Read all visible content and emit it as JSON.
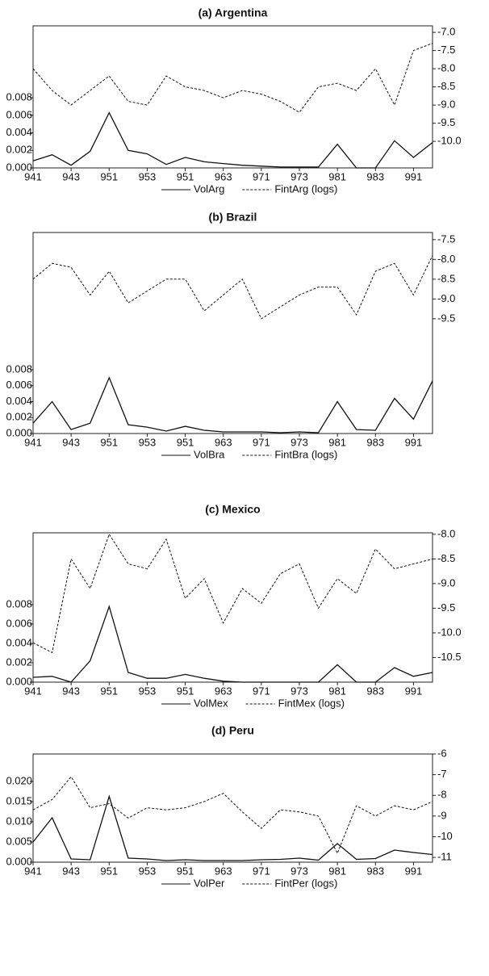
{
  "chart_data": [
    {
      "type": "line",
      "title": "(a) Argentina",
      "categories": [
        "941",
        null,
        "943",
        null,
        "951",
        null,
        "953",
        null,
        "951",
        null,
        "963",
        null,
        "971",
        null,
        "973",
        null,
        "981",
        null,
        "983",
        null,
        "991",
        null
      ],
      "series": [
        {
          "name": "VolArg",
          "color": "#111111",
          "style": "solid",
          "values": [
            0.0008,
            0.0015,
            0.0003,
            0.0019,
            0.0063,
            0.002,
            0.0016,
            0.0004,
            0.0012,
            0.0007,
            0.0005,
            0.0003,
            0.0002,
            0.0001,
            0.0001,
            0.0001,
            0.0027,
            0.0,
            0.0,
            0.0031,
            0.0012,
            0.0029
          ]
        },
        {
          "name": "FintArg (logs)",
          "color": "#111111",
          "style": "dashed",
          "axis": "y2",
          "values": [
            -8.0,
            -8.6,
            -9.0,
            -8.6,
            -8.2,
            -8.9,
            -9.0,
            -8.2,
            -8.5,
            -8.6,
            -8.8,
            -8.6,
            -8.7,
            -8.9,
            -9.2,
            -8.5,
            -8.4,
            -8.6,
            -8.0,
            -9.0,
            -7.5,
            -7.3
          ]
        }
      ],
      "ylim": [
        0,
        0.0162
      ],
      "yticks": [
        {
          "value": 0,
          "label": "0.000"
        },
        0.002,
        0.004,
        0.006,
        0.008
      ],
      "y2lim": [
        -10.73,
        -6.82
      ],
      "y2ticks": [
        {
          "value": -7,
          "label": "-7.0"
        },
        -7.5,
        {
          "value": -8,
          "label": "-8.0"
        },
        -8.5,
        {
          "value": -9,
          "label": "-9.0"
        },
        -9.5,
        {
          "value": -10,
          "label": "-10.0"
        }
      ],
      "grid": false,
      "legend": "bottom"
    },
    {
      "type": "line",
      "title": "(b) Brazil",
      "categories": [
        "941",
        null,
        "943",
        null,
        "951",
        null,
        "953",
        null,
        "951",
        null,
        "963",
        null,
        "971",
        null,
        "973",
        null,
        "981",
        null,
        "983",
        null,
        "991",
        null
      ],
      "series": [
        {
          "name": "VolBra",
          "color": "#111111",
          "style": "solid",
          "values": [
            0.0013,
            0.004,
            0.0005,
            0.0013,
            0.007,
            0.0011,
            0.0008,
            0.0003,
            0.0009,
            0.0004,
            0.0002,
            0.0002,
            0.0002,
            0.0001,
            0.0002,
            0.0001,
            0.004,
            0.0005,
            0.0004,
            0.0044,
            0.0018,
            0.0066
          ]
        },
        {
          "name": "FintBra (logs)",
          "color": "#111111",
          "style": "dashed",
          "axis": "y2",
          "values": [
            -8.5,
            -8.1,
            -8.2,
            -8.9,
            -8.3,
            -9.1,
            -8.8,
            -8.5,
            -8.5,
            -9.3,
            -8.9,
            -8.5,
            -9.5,
            -9.2,
            -8.9,
            -8.7,
            -8.7,
            -9.4,
            -8.3,
            -8.1,
            -8.9,
            -7.9
          ]
        }
      ],
      "ylim": [
        0,
        0.0252
      ],
      "yticks": [
        {
          "value": 0,
          "label": "0.000"
        },
        0.002,
        0.004,
        0.006,
        0.008
      ],
      "y2lim": [
        -12.4,
        -7.32
      ],
      "y2ticks": [
        -7.5,
        {
          "value": -8,
          "label": "-8.0"
        },
        -8.5,
        {
          "value": -9,
          "label": "-9.0"
        },
        -9.5
      ],
      "grid": false,
      "legend": "bottom"
    },
    {
      "type": "line",
      "title": "(c) Mexico",
      "categories": [
        "941",
        null,
        "943",
        null,
        "951",
        null,
        "953",
        null,
        "951",
        null,
        "963",
        null,
        "971",
        null,
        "973",
        null,
        "981",
        null,
        "983",
        null,
        "991",
        null
      ],
      "series": [
        {
          "name": "VolMex",
          "color": "#111111",
          "style": "solid",
          "values": [
            0.0005,
            0.0006,
            0.0,
            0.0022,
            0.0078,
            0.001,
            0.0004,
            0.0004,
            0.0008,
            0.0004,
            0.0001,
            0.0,
            0.0,
            0.0,
            0.0,
            0.0,
            0.0018,
            0.0,
            0.0,
            0.0015,
            0.0006,
            0.001
          ]
        },
        {
          "name": "FintMex (logs)",
          "color": "#111111",
          "style": "dashed",
          "axis": "y2",
          "values": [
            -10.2,
            -10.4,
            -8.5,
            -9.1,
            -8.0,
            -8.6,
            -8.7,
            -8.1,
            -9.3,
            -8.9,
            -9.8,
            -9.1,
            -9.4,
            -8.8,
            -8.6,
            -9.5,
            -8.9,
            -9.2,
            -8.3,
            -8.7,
            -8.6,
            -8.5
          ]
        }
      ],
      "ylim": [
        0,
        0.0154
      ],
      "yticks": [
        {
          "value": 0,
          "label": "0.000"
        },
        0.002,
        0.004,
        0.006,
        0.008
      ],
      "y2lim": [
        -11.0,
        -7.97
      ],
      "y2ticks": [
        {
          "value": -8,
          "label": "-8.0"
        },
        -8.5,
        {
          "value": -9,
          "label": "-9.0"
        },
        -9.5,
        {
          "value": -10,
          "label": "-10.0"
        },
        -10.5
      ],
      "grid": false,
      "legend": "bottom"
    },
    {
      "type": "line",
      "title": "(d) Peru",
      "categories": [
        "941",
        null,
        "943",
        null,
        "951",
        null,
        "953",
        null,
        "951",
        null,
        "963",
        null,
        "971",
        null,
        "973",
        null,
        "981",
        null,
        "983",
        null,
        "991",
        null
      ],
      "series": [
        {
          "name": "VolPer",
          "color": "#111111",
          "style": "solid",
          "values": [
            0.005,
            0.011,
            0.0008,
            0.0006,
            0.0163,
            0.001,
            0.0008,
            0.0004,
            0.0006,
            0.0004,
            0.0004,
            0.0004,
            0.0006,
            0.0007,
            0.001,
            0.0005,
            0.0046,
            0.0007,
            0.0009,
            0.003,
            0.0024,
            0.0019
          ]
        },
        {
          "name": "FintPer (logs)",
          "color": "#111111",
          "style": "dashed",
          "axis": "y2",
          "values": [
            -8.7,
            -8.2,
            -7.1,
            -8.6,
            -8.4,
            -9.1,
            -8.6,
            -8.7,
            -8.6,
            -8.3,
            -7.9,
            -8.8,
            -9.6,
            -8.7,
            -8.8,
            -9.0,
            -10.8,
            -8.5,
            -9.0,
            -8.5,
            -8.7,
            -8.3
          ]
        }
      ],
      "ylim": [
        0,
        0.0268
      ],
      "yticks": [
        {
          "value": 0,
          "label": "0.000"
        },
        {
          "value": 0.005,
          "label": "0.005"
        },
        {
          "value": 0.01,
          "label": "0.010"
        },
        {
          "value": 0.015,
          "label": "0.015"
        },
        {
          "value": 0.02,
          "label": "0.020"
        }
      ],
      "y2lim": [
        -11.23,
        -6
      ],
      "y2ticks": [
        -6,
        -7,
        -8,
        -9,
        -10,
        -11
      ],
      "grid": false,
      "legend": "bottom"
    }
  ]
}
